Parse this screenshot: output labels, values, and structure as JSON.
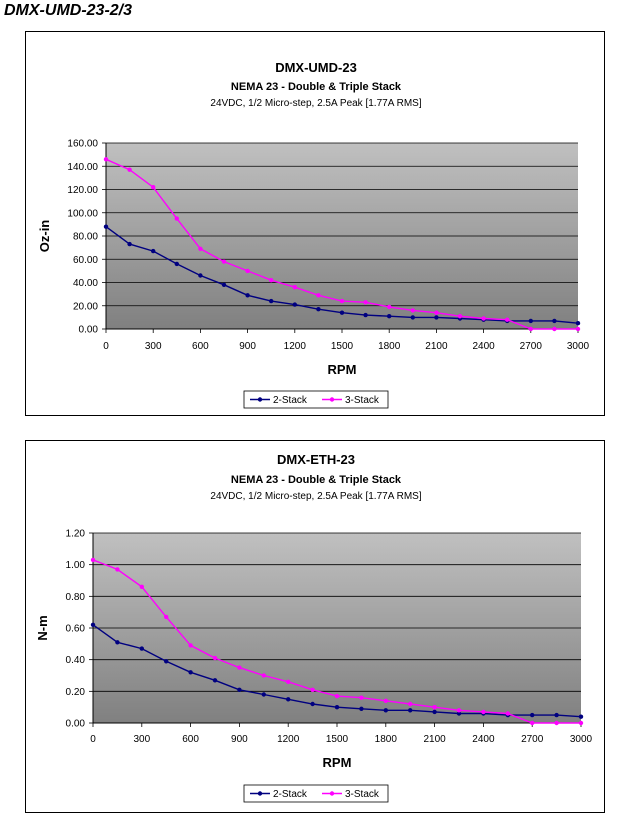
{
  "page": {
    "title": "DMX-UMD-23-2/3"
  },
  "colors": {
    "stack2": "#000080",
    "stack3": "#ff00ff",
    "plot_top": "#c0c0c0",
    "plot_bottom": "#808080"
  },
  "chart_data": [
    {
      "type": "line",
      "title": "DMX-UMD-23",
      "subtitle": "NEMA 23 - Double & Triple Stack",
      "subtitle2": "24VDC, 1/2 Micro-step, 2.5A Peak [1.77A RMS]",
      "xlabel": "RPM",
      "ylabel": "Oz-in",
      "xlim": [
        0,
        3000
      ],
      "ylim": [
        0,
        160
      ],
      "xticks": [
        "0",
        "300",
        "600",
        "900",
        "1200",
        "1500",
        "1800",
        "2100",
        "2400",
        "2700",
        "3000"
      ],
      "yticks": [
        "0.00",
        "20.00",
        "40.00",
        "60.00",
        "80.00",
        "100.00",
        "120.00",
        "140.00",
        "160.00"
      ],
      "grid": true,
      "legend": "bottom",
      "series": [
        {
          "name": "2-Stack",
          "x": [
            0,
            150,
            300,
            450,
            600,
            750,
            900,
            1050,
            1200,
            1350,
            1500,
            1650,
            1800,
            1950,
            2100,
            2250,
            2400,
            2550,
            2700,
            2850,
            3000
          ],
          "y": [
            88,
            73,
            67,
            56,
            46,
            38,
            29,
            24,
            21,
            17,
            14,
            12,
            11,
            10,
            10,
            9,
            8,
            7,
            7,
            7,
            5
          ]
        },
        {
          "name": "3-Stack",
          "x": [
            0,
            150,
            300,
            450,
            600,
            750,
            900,
            1050,
            1200,
            1350,
            1500,
            1650,
            1800,
            1950,
            2100,
            2250,
            2400,
            2550,
            2700,
            2850,
            3000
          ],
          "y": [
            146,
            137,
            122,
            95,
            69,
            58,
            50,
            42,
            36,
            29,
            24,
            23,
            19,
            16,
            14,
            11,
            9,
            8,
            0,
            0,
            0
          ]
        }
      ]
    },
    {
      "type": "line",
      "title": "DMX-ETH-23",
      "subtitle": "NEMA 23 - Double & Triple Stack",
      "subtitle2": "24VDC, 1/2 Micro-step, 2.5A Peak [1.77A RMS]",
      "xlabel": "RPM",
      "ylabel": "N-m",
      "xlim": [
        0,
        3000
      ],
      "ylim": [
        0,
        1.2
      ],
      "xticks": [
        "0",
        "300",
        "600",
        "900",
        "1200",
        "1500",
        "1800",
        "2100",
        "2400",
        "2700",
        "3000"
      ],
      "yticks": [
        "0.00",
        "0.20",
        "0.40",
        "0.60",
        "0.80",
        "1.00",
        "1.20"
      ],
      "grid": true,
      "legend": "bottom",
      "series": [
        {
          "name": "2-Stack",
          "x": [
            0,
            150,
            300,
            450,
            600,
            750,
            900,
            1050,
            1200,
            1350,
            1500,
            1650,
            1800,
            1950,
            2100,
            2250,
            2400,
            2550,
            2700,
            2850,
            3000
          ],
          "y": [
            0.62,
            0.51,
            0.47,
            0.39,
            0.32,
            0.27,
            0.21,
            0.18,
            0.15,
            0.12,
            0.1,
            0.09,
            0.08,
            0.08,
            0.07,
            0.06,
            0.06,
            0.05,
            0.05,
            0.05,
            0.04
          ]
        },
        {
          "name": "3-Stack",
          "x": [
            0,
            150,
            300,
            450,
            600,
            750,
            900,
            1050,
            1200,
            1350,
            1500,
            1650,
            1800,
            1950,
            2100,
            2250,
            2400,
            2550,
            2700,
            2850,
            3000
          ],
          "y": [
            1.03,
            0.97,
            0.86,
            0.67,
            0.49,
            0.41,
            0.35,
            0.3,
            0.26,
            0.21,
            0.17,
            0.16,
            0.14,
            0.12,
            0.1,
            0.08,
            0.07,
            0.06,
            0.0,
            0.0,
            0.0
          ]
        }
      ]
    }
  ]
}
